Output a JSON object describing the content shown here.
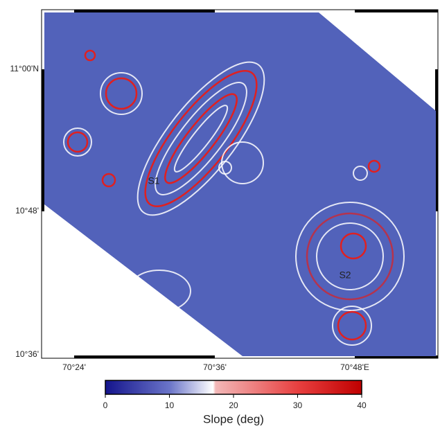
{
  "map": {
    "lat_labels": [
      "11°00'N",
      "10°48'",
      "10°36'"
    ],
    "lon_labels": [
      "70°24'",
      "70°36'",
      "70°48'E"
    ],
    "annotations": [
      "S1",
      "S2"
    ],
    "colorbar": {
      "label": "Slope (deg)",
      "lim": [
        0,
        40
      ],
      "ticks": [
        0,
        10,
        20,
        30,
        40
      ]
    }
  }
}
